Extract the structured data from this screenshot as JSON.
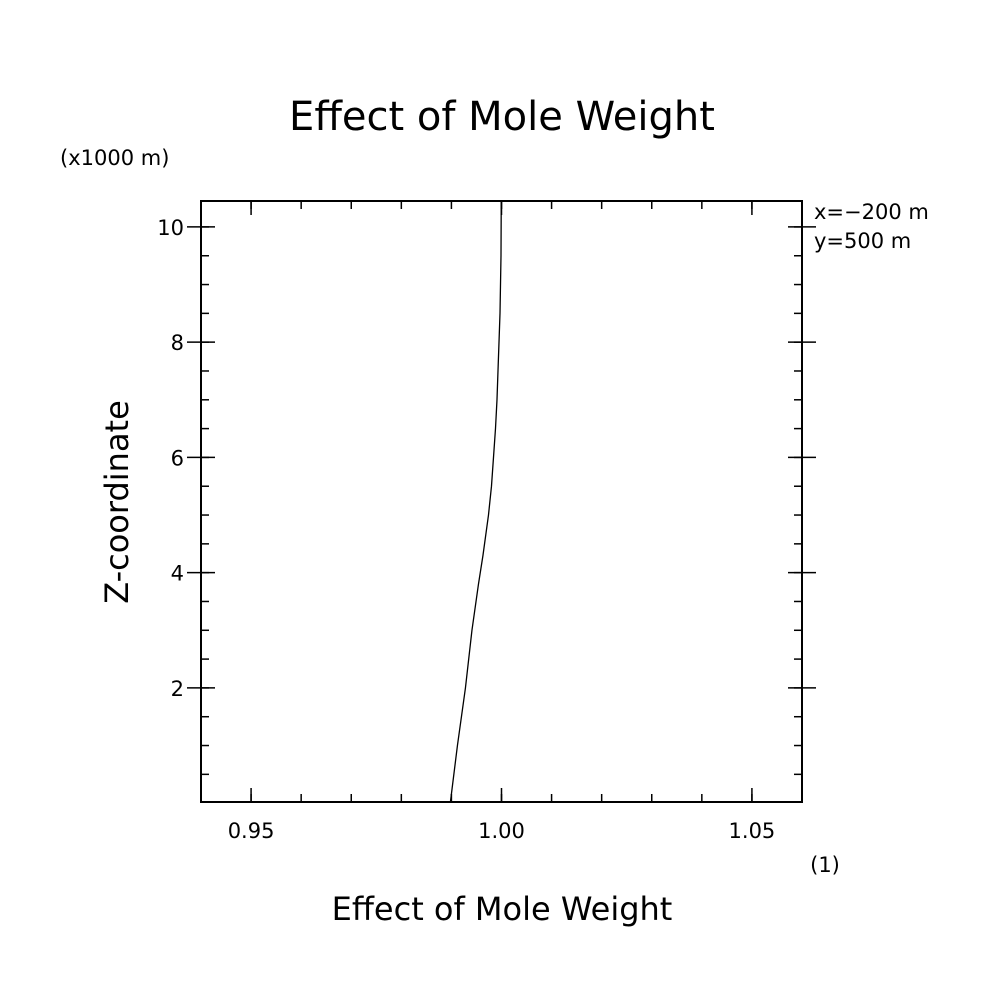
{
  "chart_data": {
    "type": "line",
    "title": "Effect of Mole Weight",
    "xlabel": "Effect of Mole Weight",
    "ylabel": "Z-coordinate",
    "x_unit": "(1)",
    "y_unit": "(x1000 m)",
    "xlim": [
      0.94,
      1.06
    ],
    "ylim": [
      0.02,
      10.45
    ],
    "x_ticks": [
      {
        "value": 0.95,
        "label": "0.95"
      },
      {
        "value": 1.0,
        "label": "1.00"
      },
      {
        "value": 1.05,
        "label": "1.05"
      }
    ],
    "y_ticks": [
      {
        "value": 2,
        "label": "2"
      },
      {
        "value": 4,
        "label": "4"
      },
      {
        "value": 6,
        "label": "6"
      },
      {
        "value": 8,
        "label": "8"
      },
      {
        "value": 10,
        "label": "10"
      }
    ],
    "annotations": [
      "x=−200 m",
      "y=500 m"
    ],
    "grid": false,
    "series": [
      {
        "x": [
          0.9898,
          0.9912,
          0.9928,
          0.9941,
          0.9954,
          0.9963,
          0.9974,
          0.998,
          0.9984,
          0.9988,
          0.9991,
          0.9993,
          0.9995,
          0.9997,
          0.9998,
          0.9999,
          0.99995
        ],
        "y": [
          0.02,
          1.0,
          2.0,
          3.0,
          3.8,
          4.3,
          5.0,
          5.5,
          6.0,
          6.5,
          7.0,
          7.5,
          8.0,
          8.5,
          9.0,
          9.5,
          10.45
        ]
      }
    ]
  }
}
